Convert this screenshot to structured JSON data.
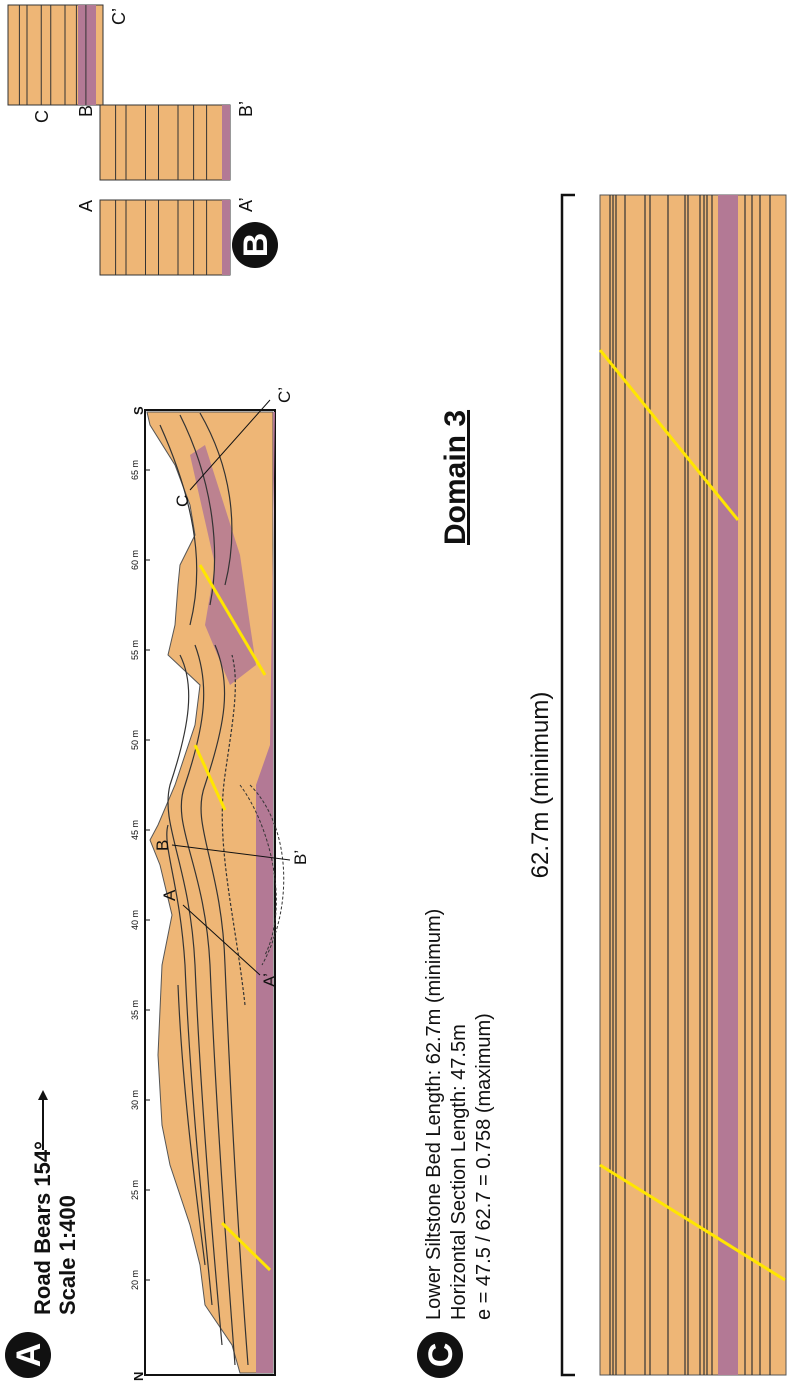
{
  "panel_a": {
    "badge": "A",
    "road_bearing": "Road Bears 154°",
    "scale": "Scale 1:400",
    "north": "N",
    "south": "S",
    "distance_ticks": [
      "20 m",
      "25 m",
      "30 m",
      "35 m",
      "40 m",
      "45 m",
      "50 m",
      "55 m",
      "60 m",
      "65 m"
    ],
    "section_labels": {
      "a_top": "A",
      "a_bottom": "A’",
      "b_top": "B",
      "b_bottom": "B’",
      "c_top": "C",
      "c_bottom": "C’"
    }
  },
  "title": "Domain 3",
  "panel_b": {
    "badge": "B",
    "columns": [
      {
        "top": "A",
        "bottom": "A’"
      },
      {
        "top": "B",
        "bottom": "B’"
      },
      {
        "top": "C",
        "bottom": "C’"
      }
    ]
  },
  "panel_c": {
    "badge": "C",
    "lines": [
      "Lower Siltstone Bed Length: 62.7m (minimum)",
      "Horizontal Section Length: 47.5m",
      "e = 47.5 / 62.7 = 0.758 (maximum)"
    ],
    "bar_label": "62.7m (minimum)"
  }
}
